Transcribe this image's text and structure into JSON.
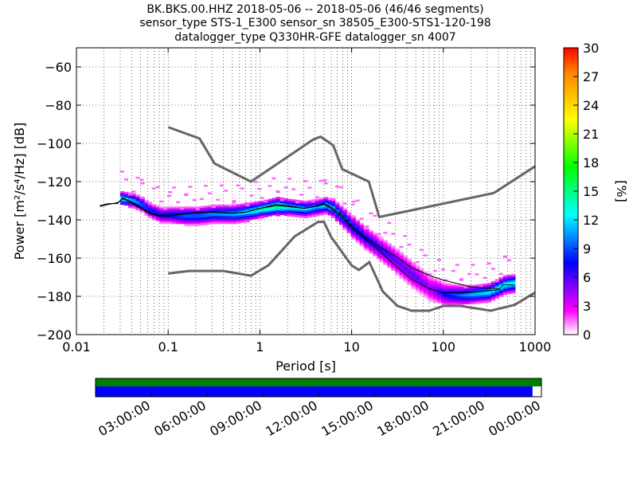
{
  "title": {
    "line1": "BK.BKS.00.HHZ   2018-05-06 -- 2018-05-06  (46/46 segments)",
    "line2": "sensor_type STS-1_E300 sensor_sn 38505_E300-STS1-120-198",
    "line3": "datalogger_type Q330HR-GFE datalogger_sn 4007"
  },
  "chart_data": {
    "type": "heatmap",
    "xlabel": "Period [s]",
    "ylabel": "Power [m²/s⁴/Hz] [dB]",
    "x_scale": "log",
    "xlim": [
      0.01,
      1000
    ],
    "ylim": [
      -200,
      -50
    ],
    "xticks": [
      {
        "value": 0.01,
        "label": "0.01"
      },
      {
        "value": 0.1,
        "label": "0.1"
      },
      {
        "value": 1,
        "label": "1"
      },
      {
        "value": 10,
        "label": "10"
      },
      {
        "value": 100,
        "label": "100"
      },
      {
        "value": 1000,
        "label": "1000"
      }
    ],
    "yticks": [
      {
        "value": -60,
        "label": "−60"
      },
      {
        "value": -80,
        "label": "−80"
      },
      {
        "value": -100,
        "label": "−100"
      },
      {
        "value": -120,
        "label": "−120"
      },
      {
        "value": -140,
        "label": "−140"
      },
      {
        "value": -160,
        "label": "−160"
      },
      {
        "value": -180,
        "label": "−180"
      },
      {
        "value": -200,
        "label": "−200"
      }
    ],
    "grid": true,
    "colorbar": {
      "label": "[%]",
      "min": 0,
      "max": 30,
      "ticks": [
        {
          "value": 0,
          "label": "0"
        },
        {
          "value": 3,
          "label": "3"
        },
        {
          "value": 6,
          "label": "6"
        },
        {
          "value": 9,
          "label": "9"
        },
        {
          "value": 12,
          "label": "12"
        },
        {
          "value": 15,
          "label": "15"
        },
        {
          "value": 18,
          "label": "18"
        },
        {
          "value": 21,
          "label": "21"
        },
        {
          "value": 24,
          "label": "24"
        },
        {
          "value": 27,
          "label": "27"
        },
        {
          "value": 30,
          "label": "30"
        }
      ],
      "colormap": [
        "#ffffff",
        "#ff00ff",
        "#8000ff",
        "#0000ff",
        "#0080ff",
        "#00ffff",
        "#00ff80",
        "#00ff00",
        "#80ff00",
        "#ffff00",
        "#ffc000",
        "#ff8000",
        "#ff0000"
      ]
    },
    "high_noise_model": [
      [
        0.1,
        -91.5
      ],
      [
        0.22,
        -97.4
      ],
      [
        0.32,
        -110.5
      ],
      [
        0.8,
        -120
      ],
      [
        3.8,
        -98
      ],
      [
        4.6,
        -96.5
      ],
      [
        6.3,
        -101
      ],
      [
        7.9,
        -113.5
      ],
      [
        15.4,
        -120
      ],
      [
        20,
        -138.5
      ],
      [
        354,
        -126
      ],
      [
        1000,
        -112
      ]
    ],
    "low_noise_model": [
      [
        0.1,
        -168
      ],
      [
        0.17,
        -166.7
      ],
      [
        0.4,
        -166.7
      ],
      [
        0.8,
        -169.2
      ],
      [
        1.24,
        -163.7
      ],
      [
        2.4,
        -148.6
      ],
      [
        4.3,
        -141.1
      ],
      [
        5,
        -141.1
      ],
      [
        6,
        -149
      ],
      [
        10,
        -163.8
      ],
      [
        12,
        -166.2
      ],
      [
        15.6,
        -162.1
      ],
      [
        21.9,
        -177.5
      ],
      [
        31.6,
        -185
      ],
      [
        45,
        -187.5
      ],
      [
        70,
        -187.5
      ],
      [
        101,
        -185
      ],
      [
        154,
        -185
      ],
      [
        328,
        -187.5
      ],
      [
        600,
        -184.4
      ],
      [
        1000,
        -178
      ]
    ],
    "mean_curve": [
      [
        0.018,
        -133
      ],
      [
        0.022,
        -132
      ],
      [
        0.028,
        -131
      ],
      [
        0.032,
        -129
      ],
      [
        0.04,
        -131
      ],
      [
        0.05,
        -134
      ],
      [
        0.065,
        -137
      ],
      [
        0.08,
        -138
      ],
      [
        0.1,
        -138
      ],
      [
        0.15,
        -137
      ],
      [
        0.2,
        -136
      ],
      [
        0.3,
        -136
      ],
      [
        0.5,
        -136.5
      ],
      [
        0.7,
        -136
      ],
      [
        1,
        -134
      ],
      [
        1.5,
        -132.5
      ],
      [
        2,
        -133
      ],
      [
        3,
        -134
      ],
      [
        4,
        -133
      ],
      [
        5,
        -132
      ],
      [
        6,
        -134
      ],
      [
        8,
        -139
      ],
      [
        10,
        -144
      ],
      [
        14,
        -150
      ],
      [
        20,
        -156
      ],
      [
        30,
        -164
      ],
      [
        45,
        -171
      ],
      [
        70,
        -176
      ],
      [
        100,
        -178
      ],
      [
        200,
        -178
      ],
      [
        400,
        -176.5
      ],
      [
        450,
        -174
      ],
      [
        600,
        -174
      ]
    ],
    "mode_curve": [
      [
        0.018,
        -132.5
      ],
      [
        0.022,
        -131.5
      ],
      [
        0.028,
        -131.5
      ],
      [
        0.032,
        -128.5
      ],
      [
        0.04,
        -130.5
      ],
      [
        0.05,
        -133.5
      ],
      [
        0.065,
        -136.5
      ],
      [
        0.08,
        -137.5
      ],
      [
        0.1,
        -137.5
      ],
      [
        0.15,
        -137
      ],
      [
        0.2,
        -136
      ],
      [
        0.3,
        -136
      ],
      [
        0.5,
        -136.5
      ],
      [
        0.7,
        -136
      ],
      [
        1,
        -134
      ],
      [
        1.5,
        -132
      ],
      [
        2,
        -132.5
      ],
      [
        3,
        -134
      ],
      [
        4,
        -133
      ],
      [
        5,
        -131.5
      ],
      [
        6,
        -133.5
      ],
      [
        8,
        -138
      ],
      [
        10,
        -143
      ],
      [
        14,
        -149
      ],
      [
        20,
        -154
      ],
      [
        30,
        -159
      ],
      [
        45,
        -165
      ],
      [
        70,
        -169
      ],
      [
        100,
        -171.5
      ],
      [
        200,
        -175
      ],
      [
        400,
        -176
      ]
    ],
    "density_band": [
      [
        0.03,
        -129,
        -128,
        14
      ],
      [
        0.04,
        -130,
        -129,
        12
      ],
      [
        0.05,
        -132,
        -131,
        10
      ],
      [
        0.06,
        -135,
        -134,
        9
      ],
      [
        0.08,
        -138,
        -136,
        8
      ],
      [
        0.1,
        -138,
        -136,
        9
      ],
      [
        0.15,
        -139,
        -136,
        10
      ],
      [
        0.2,
        -139,
        -136,
        10
      ],
      [
        0.3,
        -138,
        -135,
        11
      ],
      [
        0.5,
        -138,
        -135,
        12
      ],
      [
        0.7,
        -137,
        -134,
        13
      ],
      [
        1,
        -135,
        -133,
        15
      ],
      [
        1.5,
        -134,
        -131,
        16
      ],
      [
        2,
        -134,
        -132,
        14
      ],
      [
        3,
        -135,
        -133,
        12
      ],
      [
        4,
        -134,
        -132,
        11
      ],
      [
        5,
        -133,
        -131,
        13
      ],
      [
        6,
        -135,
        -132,
        12
      ],
      [
        8,
        -141,
        -137,
        10
      ],
      [
        10,
        -146,
        -141,
        9
      ],
      [
        14,
        -152,
        -147,
        8
      ],
      [
        20,
        -158,
        -152,
        7
      ],
      [
        30,
        -165,
        -158,
        6
      ],
      [
        45,
        -172,
        -165,
        6
      ],
      [
        70,
        -179,
        -172,
        5
      ],
      [
        100,
        -181,
        -176,
        8
      ],
      [
        150,
        -181,
        -177,
        10
      ],
      [
        200,
        -180,
        -177,
        12
      ],
      [
        300,
        -179,
        -176,
        13
      ],
      [
        450,
        -175,
        -172,
        14
      ],
      [
        600,
        -174,
        -171,
        14
      ]
    ],
    "color_scale": "percent of segments",
    "timeline": {
      "tick_labels": [
        "03:00:00",
        "06:00:00",
        "09:00:00",
        "12:00:00",
        "15:00:00",
        "18:00:00",
        "21:00:00",
        "00:00:00"
      ],
      "coverage_fraction": 0.98,
      "data_color": "#008000",
      "coverage_color": "#0000ff"
    }
  }
}
